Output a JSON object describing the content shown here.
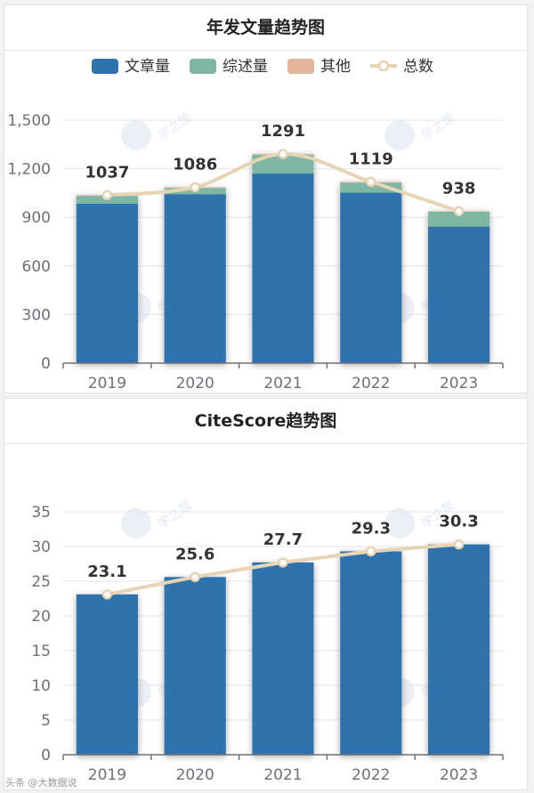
{
  "chart_data": [
    {
      "type": "bar",
      "title": "年发文量趋势图",
      "categories": [
        "2019",
        "2020",
        "2021",
        "2022",
        "2023"
      ],
      "stacked": true,
      "series": [
        {
          "name": "文章量",
          "type": "bar",
          "color": "#2f73ad",
          "values": [
            985,
            1043,
            1170,
            1052,
            843
          ]
        },
        {
          "name": "综述量",
          "type": "bar",
          "color": "#7db7a4",
          "values": [
            47,
            38,
            115,
            62,
            92
          ]
        },
        {
          "name": "其他",
          "type": "bar",
          "color": "#e4b49a",
          "values": [
            5,
            5,
            6,
            5,
            3
          ]
        },
        {
          "name": "总数",
          "type": "line",
          "color": "#e7d4b4",
          "values": [
            1037,
            1086,
            1291,
            1119,
            938
          ]
        }
      ],
      "data_labels": [
        "1037",
        "1086",
        "1291",
        "1119",
        "938"
      ],
      "yticks": [
        "0",
        "300",
        "600",
        "900",
        "1,200",
        "1,500"
      ],
      "ylim": [
        0,
        1500
      ],
      "legend_position": "top",
      "grid": true
    },
    {
      "type": "bar",
      "title": "CiteScore趋势图",
      "categories": [
        "2019",
        "2020",
        "2021",
        "2022",
        "2023"
      ],
      "series": [
        {
          "name": "CiteScore",
          "type": "bar",
          "color": "#2f73ad",
          "values": [
            23.1,
            25.6,
            27.7,
            29.3,
            30.3
          ]
        },
        {
          "name": "CiteScore",
          "type": "line",
          "color": "#e7d4b4",
          "values": [
            23.1,
            25.6,
            27.7,
            29.3,
            30.3
          ]
        }
      ],
      "data_labels": [
        "23.1",
        "25.6",
        "27.7",
        "29.3",
        "30.3"
      ],
      "yticks": [
        "0",
        "5",
        "10",
        "15",
        "20",
        "25",
        "30",
        "35"
      ],
      "ylim": [
        0,
        35
      ],
      "grid": true
    }
  ],
  "watermark": {
    "logo_text": "学之策",
    "footer_text": "头条 @大数据说"
  }
}
